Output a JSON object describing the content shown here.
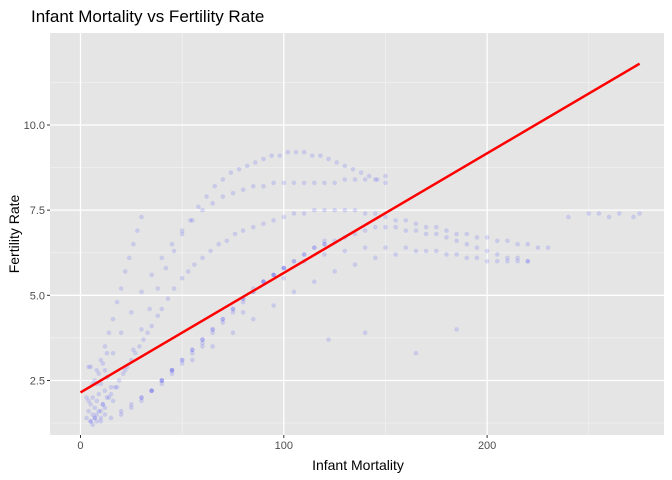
{
  "chart_data": {
    "type": "scatter",
    "title": "Infant Mortality vs Fertility Rate",
    "xlabel": "Infant Mortality",
    "ylabel": "Fertility Rate",
    "xlim": [
      -15,
      287
    ],
    "ylim": [
      0.9,
      12.7
    ],
    "x_ticks": [
      0,
      100,
      200
    ],
    "x_tick_labels": [
      "0",
      "100",
      "200"
    ],
    "y_ticks": [
      2.5,
      5.0,
      7.5,
      10.0
    ],
    "y_tick_labels": [
      "2.5",
      "5.0",
      "7.5",
      "10.0"
    ],
    "grid": true,
    "background": "#e5e5e5",
    "point_color": "#0000ff",
    "point_opacity": 0.12,
    "regression_line": {
      "x": [
        0,
        275
      ],
      "y": [
        2.15,
        11.8
      ],
      "color": "#ff0000"
    },
    "series": [
      {
        "x": [
          3,
          4,
          5,
          5,
          6,
          6,
          7,
          7,
          8,
          8,
          9,
          10,
          10,
          11,
          12,
          12,
          13,
          14,
          15,
          16,
          4,
          5,
          6,
          7,
          8,
          9,
          10,
          11,
          12,
          13,
          3,
          4,
          6,
          8,
          10,
          12,
          14,
          16,
          18,
          20,
          22,
          24,
          26,
          28,
          30,
          5,
          7,
          9,
          11,
          13,
          15,
          17,
          19,
          21,
          23,
          25,
          27,
          29,
          31,
          33,
          35,
          38,
          40,
          43,
          46,
          50,
          53,
          56,
          60,
          64,
          68,
          72,
          76,
          80,
          85,
          90,
          95,
          100,
          105,
          110,
          115,
          120,
          125,
          130,
          135,
          140,
          145,
          150,
          155,
          160,
          165,
          170,
          175,
          180,
          185,
          190,
          195,
          200,
          205,
          210,
          215,
          220,
          225,
          230,
          240,
          250,
          255,
          260,
          265,
          272,
          275,
          8,
          12,
          16,
          20,
          25,
          30,
          35,
          40,
          45,
          50,
          55,
          60,
          65,
          70,
          75,
          80,
          85,
          90,
          95,
          100,
          105,
          110,
          115,
          120,
          125,
          130,
          135,
          140,
          145,
          150,
          30,
          35,
          40,
          45,
          50,
          55,
          60,
          65,
          70,
          75,
          80,
          85,
          90,
          95,
          100,
          110,
          120,
          130,
          140,
          150,
          160,
          170,
          180,
          190,
          200,
          210,
          220,
          10,
          15,
          20,
          25,
          30,
          35,
          40,
          45,
          50,
          55,
          60,
          65,
          70,
          75,
          80,
          85,
          90,
          95,
          100,
          105,
          110,
          115,
          120,
          18,
          22,
          26,
          30,
          34,
          38,
          42,
          46,
          50,
          54,
          58,
          62,
          66,
          70,
          74,
          78,
          82,
          86,
          90,
          94,
          98,
          102,
          106,
          110,
          114,
          118,
          122,
          126,
          130,
          134,
          138,
          142,
          146,
          150,
          20,
          25,
          30,
          35,
          40,
          45,
          50,
          55,
          60,
          65,
          70,
          75,
          80,
          85,
          90,
          95,
          100,
          105,
          110,
          115,
          120,
          125,
          130,
          135,
          140,
          145,
          150,
          155,
          160,
          165,
          170,
          175,
          180,
          185,
          190,
          195,
          200,
          205,
          210,
          215,
          220,
          122,
          140,
          165,
          185,
          40,
          60,
          80,
          100,
          120,
          45,
          55,
          65,
          75,
          85,
          95,
          105,
          115,
          125,
          135,
          145,
          155,
          165,
          175,
          185,
          195,
          205,
          215
        ],
        "y": [
          1.4,
          1.6,
          1.3,
          1.8,
          1.5,
          2.0,
          1.4,
          1.7,
          1.9,
          1.5,
          2.1,
          1.6,
          2.4,
          1.8,
          2.2,
          1.5,
          2.6,
          2.0,
          2.3,
          1.9,
          2.9,
          2.9,
          1.2,
          2.5,
          1.3,
          2.7,
          1.4,
          3.0,
          1.7,
          3.3,
          2.0,
          1.9,
          2.4,
          2.8,
          3.1,
          3.5,
          3.9,
          4.3,
          4.8,
          5.2,
          5.7,
          6.1,
          6.5,
          6.9,
          7.3,
          1.3,
          1.4,
          1.6,
          1.8,
          2.0,
          2.1,
          2.3,
          2.5,
          2.7,
          2.9,
          3.1,
          3.3,
          3.5,
          3.7,
          3.9,
          4.1,
          4.4,
          4.6,
          4.9,
          5.2,
          5.5,
          5.7,
          5.9,
          6.1,
          6.3,
          6.5,
          6.6,
          6.8,
          6.9,
          7.0,
          7.1,
          7.2,
          7.3,
          7.4,
          7.4,
          7.5,
          7.5,
          7.5,
          7.5,
          7.5,
          7.4,
          7.4,
          7.3,
          7.2,
          7.2,
          7.1,
          7.0,
          7.0,
          6.9,
          6.8,
          6.8,
          6.7,
          6.7,
          6.6,
          6.6,
          6.5,
          6.5,
          6.4,
          6.4,
          7.3,
          7.4,
          7.4,
          7.3,
          7.4,
          7.3,
          7.4,
          2.4,
          2.8,
          3.3,
          3.9,
          4.5,
          5.1,
          5.6,
          6.1,
          6.5,
          6.9,
          7.2,
          7.5,
          7.7,
          7.9,
          8.0,
          8.1,
          8.2,
          8.2,
          8.3,
          8.3,
          8.3,
          8.3,
          8.3,
          8.3,
          8.3,
          8.4,
          8.4,
          8.4,
          8.4,
          8.5,
          2.0,
          2.2,
          2.4,
          2.7,
          3.0,
          3.3,
          3.6,
          3.9,
          4.2,
          4.5,
          4.8,
          5.1,
          5.4,
          5.6,
          5.8,
          6.0,
          6.2,
          6.3,
          6.4,
          6.4,
          6.4,
          6.3,
          6.2,
          6.1,
          6.0,
          6.0,
          6.0,
          1.3,
          1.4,
          1.6,
          1.8,
          2.0,
          2.2,
          2.5,
          2.8,
          3.1,
          3.4,
          3.7,
          4.0,
          4.3,
          4.6,
          4.9,
          5.1,
          5.4,
          5.6,
          5.8,
          6.0,
          6.2,
          6.4,
          6.6,
          2.3,
          2.8,
          3.4,
          4.0,
          4.6,
          5.2,
          5.8,
          6.3,
          6.8,
          7.2,
          7.6,
          7.9,
          8.2,
          8.4,
          8.6,
          8.7,
          8.8,
          8.9,
          9.0,
          9.1,
          9.1,
          9.2,
          9.2,
          9.2,
          9.1,
          9.1,
          9.0,
          8.9,
          8.8,
          8.7,
          8.6,
          8.5,
          8.4,
          8.3,
          1.5,
          1.7,
          1.9,
          2.2,
          2.5,
          2.8,
          3.1,
          3.4,
          3.7,
          4.0,
          4.3,
          4.6,
          4.9,
          5.2,
          5.4,
          5.6,
          5.8,
          6.0,
          6.2,
          6.4,
          6.5,
          6.6,
          6.7,
          6.8,
          6.9,
          7.0,
          7.0,
          7.0,
          6.9,
          6.9,
          6.8,
          6.8,
          6.7,
          6.6,
          6.5,
          6.4,
          6.3,
          6.2,
          6.1,
          6.1,
          6.0,
          3.7,
          3.9,
          3.3,
          4.0,
          2.5,
          3.5,
          4.5,
          5.5,
          6.5,
          2.8,
          3.1,
          3.5,
          3.9,
          4.3,
          4.7,
          5.1,
          5.4,
          5.7,
          5.9,
          6.1,
          6.2,
          6.3,
          6.3,
          6.2,
          6.1,
          6.0,
          6.0
        ]
      }
    ]
  }
}
